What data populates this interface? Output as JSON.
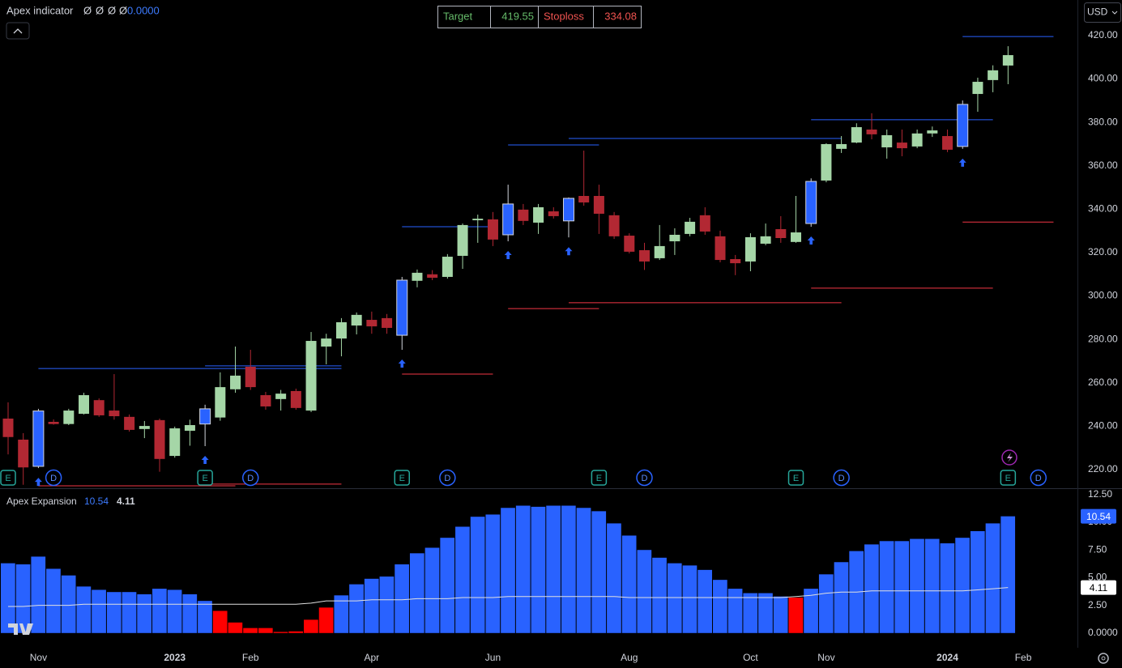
{
  "chart_data": [
    {
      "type": "candlestick",
      "title": "Apex indicator",
      "indicator": {
        "values": [
          "Ø",
          "Ø",
          "Ø",
          "Ø"
        ],
        "reading": {
          "value": 0,
          "label": "0.0000"
        }
      },
      "currency": "USD",
      "open": [
        243.5,
        233.8,
        221.5,
        242,
        241,
        245.7,
        252,
        247.2,
        244.3,
        238.7,
        242.8,
        226.3,
        237.9,
        241,
        244,
        257,
        267.4,
        254.3,
        252.5,
        256.2,
        247.2,
        276.7,
        280.4,
        286.4,
        289,
        289.8,
        281.9,
        307,
        310,
        308.8,
        318.5,
        334.9,
        335.3,
        328.2,
        339.8,
        333.8,
        339,
        334.6,
        346.1,
        346.1,
        337.2,
        327.8,
        321.1,
        317.4,
        325.2,
        328.6,
        337.2,
        327.5,
        317,
        315.9,
        324.1,
        330.8,
        324.9,
        333.4,
        353.2,
        367.8,
        370.7,
        376.7,
        368.5,
        370.7,
        368.9,
        374.9,
        373.7,
        368.9,
        393.1,
        399.5,
        406.2
      ],
      "high": [
        251,
        236.8,
        248,
        243.1,
        248,
        255.4,
        252.8,
        264,
        245.4,
        242.4,
        243.5,
        239.8,
        243,
        249.9,
        264.8,
        276.7,
        275.2,
        255.8,
        256.7,
        257.3,
        283.4,
        282.6,
        289.8,
        292.4,
        292.8,
        291.7,
        308.8,
        312.2,
        311.9,
        319.3,
        333.4,
        337.5,
        338.7,
        351.3,
        342.4,
        342.4,
        340.9,
        345.4,
        367,
        351.3,
        338.7,
        328.9,
        324.5,
        332.7,
        331.2,
        336,
        340.9,
        330.1,
        318.9,
        328.9,
        333.4,
        336.8,
        346.1,
        354.2,
        370.4,
        373.7,
        379.6,
        384.2,
        376.7,
        376.7,
        376.7,
        378.1,
        376.7,
        390.1,
        400.6,
        406.3,
        415.1
      ],
      "low": [
        227,
        213,
        220.7,
        240.7,
        240.5,
        245.4,
        244.3,
        243,
        237.5,
        234.5,
        219,
        225.5,
        231,
        230.8,
        242.5,
        255.4,
        256.7,
        247.6,
        247.2,
        247.6,
        246.5,
        268.5,
        272.2,
        282.3,
        282.6,
        282.6,
        275.2,
        304,
        307.3,
        308,
        312.5,
        324.5,
        323,
        325.2,
        332.7,
        328.6,
        335.7,
        327,
        341.6,
        328.6,
        326.3,
        319.6,
        312,
        316.6,
        318.9,
        327.5,
        328.2,
        315.5,
        309.6,
        311.4,
        323.4,
        324.5,
        324.5,
        331.9,
        352.4,
        365.9,
        370.4,
        372.2,
        363.3,
        364.4,
        368.1,
        373.3,
        366.3,
        367.8,
        384.9,
        393.9,
        397.6
      ],
      "close": [
        235,
        221,
        247,
        241,
        247.2,
        254.3,
        245,
        244.6,
        238.3,
        240.1,
        224.9,
        239,
        240.5,
        248,
        258,
        263.3,
        258,
        249.1,
        255,
        248.4,
        279.3,
        280.4,
        287.9,
        291.3,
        286,
        285.3,
        307.3,
        310.7,
        308.4,
        318.1,
        332.7,
        335.6,
        326,
        342.4,
        334.6,
        340.9,
        336.8,
        345,
        343.1,
        337.9,
        327.5,
        320.4,
        315.9,
        323,
        328.2,
        334.2,
        329.7,
        316.6,
        315.1,
        327.1,
        327.5,
        326.7,
        329.3,
        352.8,
        370,
        370,
        377.8,
        374.5,
        374.1,
        368.1,
        374.9,
        376.3,
        367.4,
        388.3,
        398.7,
        404,
        411
      ],
      "colors": {
        "up": "#a5d6a7",
        "down": "#b22833",
        "signal": "#2962ff"
      },
      "signals": [
        2,
        13,
        26,
        33,
        37,
        53,
        63
      ],
      "levels": [
        {
          "from": 2,
          "to": 22,
          "value": 266.6,
          "color": "#2962ff"
        },
        {
          "from": 13,
          "to": 22,
          "value": 267.8,
          "color": "#2962ff"
        },
        {
          "from": 2,
          "to": 15,
          "value": 212.5,
          "color": "#f23645"
        },
        {
          "from": 13,
          "to": 22,
          "value": 213.3,
          "color": "#f23645"
        },
        {
          "from": 26,
          "to": 32,
          "value": 331.9,
          "color": "#2962ff"
        },
        {
          "from": 26,
          "to": 32,
          "value": 264,
          "color": "#f23645"
        },
        {
          "from": 33,
          "to": 39,
          "value": 369.6,
          "color": "#2962ff"
        },
        {
          "from": 33,
          "to": 39,
          "value": 294.2,
          "color": "#f23645"
        },
        {
          "from": 37,
          "to": 55,
          "value": 372.6,
          "color": "#2962ff"
        },
        {
          "from": 37,
          "to": 55,
          "value": 296.9,
          "color": "#f23645"
        },
        {
          "from": 53,
          "to": 65,
          "value": 381.2,
          "color": "#2962ff"
        },
        {
          "from": 53,
          "to": 65,
          "value": 303.6,
          "color": "#f23645"
        },
        {
          "name": "Target",
          "from": 63,
          "to": 69,
          "value": 419.55,
          "color": "#2962ff"
        },
        {
          "name": "Stoploss",
          "from": 63,
          "to": 69,
          "value": 334.08,
          "color": "#f23645"
        }
      ],
      "events": [
        {
          "label": "E",
          "index": 0
        },
        {
          "label": "D",
          "index": 3
        },
        {
          "label": "E",
          "index": 13
        },
        {
          "label": "D",
          "index": 16
        },
        {
          "label": "E",
          "index": 26
        },
        {
          "label": "D",
          "index": 29
        },
        {
          "label": "E",
          "index": 39
        },
        {
          "label": "D",
          "index": 42
        },
        {
          "label": "E",
          "index": 52
        },
        {
          "label": "D",
          "index": 55
        },
        {
          "label": "E",
          "index": 66
        },
        {
          "label": "D",
          "index": 68
        }
      ],
      "xlim": [
        -0.535,
        70.58
      ],
      "ylim": [
        211.4,
        436.4
      ],
      "yticks": [
        {
          "value": 220,
          "label": "220.00"
        },
        {
          "value": 240,
          "label": "240.00"
        },
        {
          "value": 260,
          "label": "260.00"
        },
        {
          "value": 280,
          "label": "280.00"
        },
        {
          "value": 300,
          "label": "300.00"
        },
        {
          "value": 320,
          "label": "320.00"
        },
        {
          "value": 340,
          "label": "340.00"
        },
        {
          "value": 360,
          "label": "360.00"
        },
        {
          "value": 380,
          "label": "380.00"
        },
        {
          "value": 400,
          "label": "400.00"
        },
        {
          "value": 420,
          "label": "420.00"
        }
      ]
    },
    {
      "type": "bar",
      "title": "Apex Expansion",
      "values": [
        6.3,
        6.2,
        6.9,
        5.8,
        5.2,
        4.2,
        3.9,
        3.7,
        3.7,
        3.5,
        4.0,
        3.9,
        3.5,
        2.9,
        2.0,
        0.95,
        0.45,
        0.45,
        0.1,
        0.15,
        1.2,
        2.3,
        3.4,
        4.4,
        4.9,
        5.1,
        6.2,
        7.2,
        7.7,
        8.6,
        9.6,
        10.5,
        10.7,
        11.3,
        11.5,
        11.4,
        11.5,
        11.5,
        11.3,
        11.0,
        9.9,
        8.8,
        7.5,
        6.8,
        6.3,
        6.1,
        5.7,
        4.8,
        4.0,
        3.6,
        3.6,
        3.3,
        3.2,
        4.0,
        5.3,
        6.4,
        7.4,
        8.0,
        8.3,
        8.3,
        8.5,
        8.5,
        8.1,
        8.6,
        9.2,
        9.9,
        10.54
      ],
      "colors": {
        "above": "#2962ff",
        "below": "#ff0000"
      },
      "line": {
        "color": "#e0e0e0",
        "values": [
          2.4,
          2.4,
          2.5,
          2.5,
          2.5,
          2.6,
          2.6,
          2.6,
          2.6,
          2.6,
          2.6,
          2.6,
          2.6,
          2.6,
          2.6,
          2.6,
          2.6,
          2.6,
          2.6,
          2.6,
          2.7,
          2.9,
          2.9,
          2.9,
          3.0,
          3.0,
          3.0,
          3.1,
          3.1,
          3.1,
          3.2,
          3.2,
          3.2,
          3.3,
          3.3,
          3.3,
          3.3,
          3.3,
          3.3,
          3.3,
          3.3,
          3.2,
          3.2,
          3.2,
          3.2,
          3.2,
          3.2,
          3.2,
          3.2,
          3.2,
          3.2,
          3.2,
          3.3,
          3.4,
          3.6,
          3.7,
          3.7,
          3.8,
          3.8,
          3.8,
          3.8,
          3.8,
          3.8,
          3.8,
          3.9,
          4.0,
          4.11
        ]
      },
      "xlim": [
        -0.535,
        70.58
      ],
      "ylim": [
        -1.33,
        13.0
      ],
      "yticks": [
        {
          "value": 0,
          "label": "0.0000"
        },
        {
          "value": 2.5,
          "label": "2.50"
        },
        {
          "value": 5,
          "label": "5.00"
        },
        {
          "value": 7.5,
          "label": "7.50"
        },
        {
          "value": 10,
          "label": "10.00"
        },
        {
          "value": 12.5,
          "label": "12.50"
        }
      ],
      "xticks": [
        {
          "value": 2,
          "label": "Nov"
        },
        {
          "value": 11,
          "label": "2023"
        },
        {
          "value": 16,
          "label": "Feb"
        },
        {
          "value": 24,
          "label": "Apr"
        },
        {
          "value": 32,
          "label": "Jun"
        },
        {
          "value": 41,
          "label": "Aug"
        },
        {
          "value": 49,
          "label": "Oct"
        },
        {
          "value": 54,
          "label": "Nov"
        },
        {
          "value": 62,
          "label": "2024"
        },
        {
          "value": 67,
          "label": "Feb"
        }
      ]
    }
  ]
}
